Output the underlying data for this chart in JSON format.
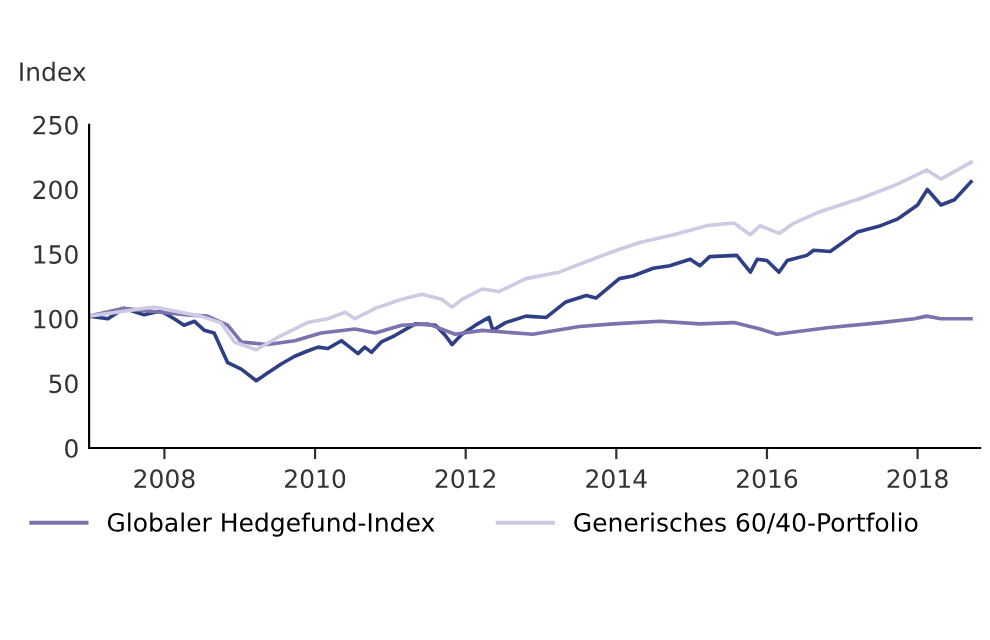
{
  "chart_data": {
    "type": "line",
    "ylabel": "Index",
    "xlim": [
      2007,
      2018.83
    ],
    "xticks": [
      2008,
      2010,
      2012,
      2014,
      2016,
      2018
    ],
    "ylim": [
      0,
      250
    ],
    "yticks": [
      0,
      50,
      100,
      150,
      200,
      250
    ],
    "grid": false,
    "legend": "bottom",
    "marker": "none",
    "line_style": "solid",
    "series": [
      {
        "color": "#2e3f86",
        "x": [
          2007,
          2007.25,
          2007.46,
          2007.73,
          2007.95,
          2008.13,
          2008.26,
          2008.4,
          2008.53,
          2008.66,
          2008.84,
          2009.02,
          2009.22,
          2009.37,
          2009.55,
          2009.73,
          2009.9,
          2010.04,
          2010.17,
          2010.35,
          2010.44,
          2010.57,
          2010.66,
          2010.75,
          2010.88,
          2011.06,
          2011.33,
          2011.6,
          2011.73,
          2011.82,
          2011.95,
          2012.13,
          2012.31,
          2012.36,
          2012.53,
          2012.8,
          2013.07,
          2013.33,
          2013.6,
          2013.73,
          2014.04,
          2014.22,
          2014.49,
          2014.71,
          2014.98,
          2015.11,
          2015.24,
          2015.6,
          2015.78,
          2015.87,
          2016.0,
          2016.16,
          2016.27,
          2016.53,
          2016.62,
          2016.84,
          2017.2,
          2017.51,
          2017.73,
          2018.0,
          2018.13,
          2018.31,
          2018.49,
          2018.71
        ],
        "values": [
          102,
          100,
          108,
          103,
          106,
          100,
          95,
          98,
          91,
          89,
          66,
          61,
          52,
          58,
          65,
          71,
          75,
          78,
          77,
          83,
          79,
          73,
          78,
          74,
          82,
          87,
          96,
          95,
          87,
          80,
          88,
          95,
          101,
          91,
          97,
          102,
          101,
          113,
          118,
          116,
          131,
          133,
          139,
          141,
          146,
          141,
          148,
          149,
          136,
          146,
          145,
          136,
          145,
          149,
          153,
          152,
          167,
          172,
          177,
          188,
          200,
          188,
          192,
          206
        ]
      },
      {
        "name": "Globaler Hedgefund-Index",
        "color": "#7a73ad",
        "x": [
          2007,
          2007.46,
          2007.95,
          2008.31,
          2008.57,
          2008.84,
          2009.02,
          2009.37,
          2009.73,
          2010.08,
          2010.53,
          2010.8,
          2011.15,
          2011.5,
          2011.86,
          2012.22,
          2012.89,
          2013.51,
          2013.96,
          2014.58,
          2015.11,
          2015.56,
          2015.91,
          2016.13,
          2016.8,
          2017.51,
          2017.96,
          2018.12,
          2018.31,
          2018.71
        ],
        "values": [
          102,
          108,
          105,
          103,
          102,
          95,
          82,
          80,
          83,
          89,
          92,
          89,
          95,
          96,
          88,
          91,
          88,
          94,
          96,
          98,
          96,
          97,
          92,
          88,
          93,
          97,
          100,
          102,
          100,
          100
        ]
      },
      {
        "name": "Generisches 60/40-Portfolio",
        "color": "#cdcae3",
        "x": [
          2007,
          2007.86,
          2008.48,
          2008.75,
          2008.93,
          2009.22,
          2009.55,
          2009.9,
          2010.17,
          2010.4,
          2010.53,
          2010.8,
          2011.15,
          2011.42,
          2011.68,
          2011.82,
          2011.95,
          2012.22,
          2012.44,
          2012.8,
          2013.24,
          2013.64,
          2013.96,
          2014.31,
          2014.76,
          2015.2,
          2015.56,
          2015.78,
          2015.91,
          2016.16,
          2016.36,
          2016.71,
          2017.24,
          2017.69,
          2018.12,
          2018.31,
          2018.71
        ],
        "values": [
          102,
          109,
          102,
          97,
          82,
          76,
          87,
          97,
          100,
          105,
          100,
          108,
          115,
          119,
          115,
          109,
          115,
          123,
          121,
          131,
          136,
          145,
          152,
          159,
          165,
          172,
          174,
          165,
          172,
          166,
          174,
          183,
          193,
          203,
          215,
          208,
          221
        ]
      }
    ]
  }
}
